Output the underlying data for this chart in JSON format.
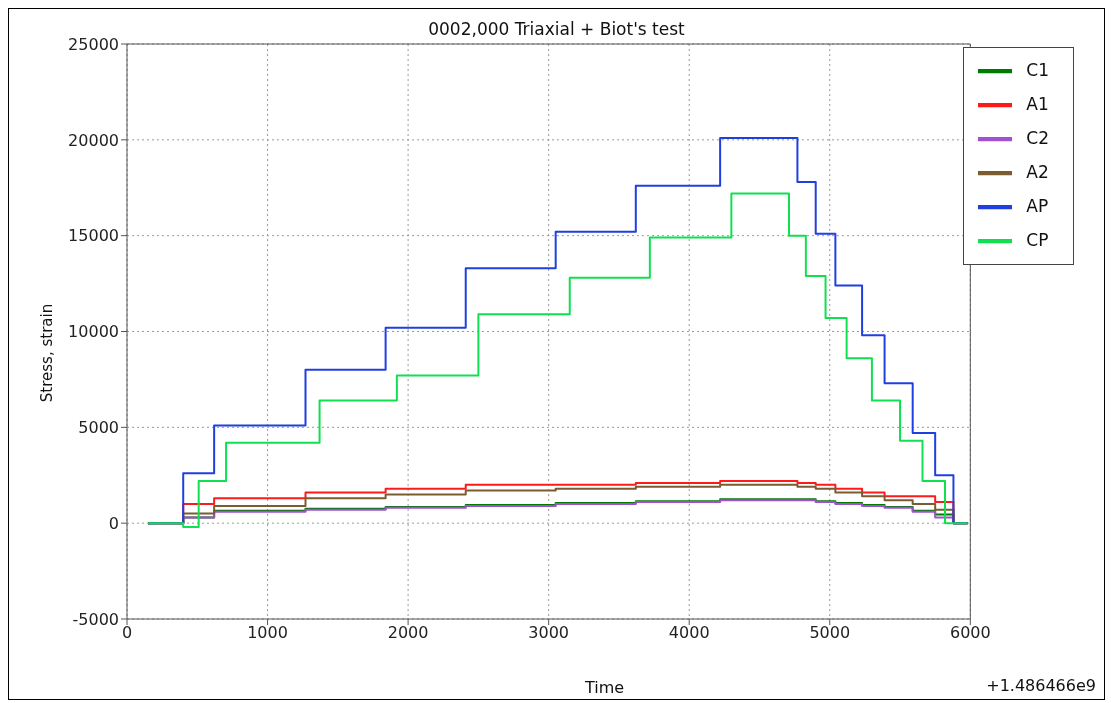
{
  "chart_data": {
    "type": "step",
    "title": "0002,000 Triaxial + Biot's test",
    "xlabel": "Time",
    "ylabel": "Stress, strain",
    "annotations": [
      "+1.486466e9"
    ],
    "xlim": [
      0,
      6000
    ],
    "xticks": [
      0,
      1000,
      2000,
      3000,
      4000,
      5000,
      6000
    ],
    "ylim": [
      -5000,
      25000
    ],
    "yticks": [
      -5000,
      0,
      5000,
      10000,
      15000,
      20000,
      25000
    ],
    "grid": true,
    "legend": "top right",
    "line_style": "solid",
    "marker": "none",
    "series": [
      {
        "name": "C1",
        "color": "#007a00",
        "x": [
          150,
          400,
          620,
          1270,
          1840,
          2410,
          3050,
          3620,
          4220,
          4770,
          4900,
          5040,
          5230,
          5390,
          5590,
          5750,
          5880,
          5980
        ],
        "values": [
          0,
          300,
          650,
          750,
          850,
          950,
          1050,
          1150,
          1250,
          1250,
          1150,
          1050,
          950,
          850,
          650,
          450,
          0,
          0
        ]
      },
      {
        "name": "A1",
        "color": "#ff1a1a",
        "x": [
          150,
          400,
          620,
          1270,
          1840,
          2410,
          3050,
          3620,
          4220,
          4770,
          4900,
          5040,
          5230,
          5390,
          5590,
          5750,
          5880,
          5980
        ],
        "values": [
          0,
          1000,
          1300,
          1600,
          1800,
          2000,
          2000,
          2100,
          2200,
          2100,
          2000,
          1800,
          1600,
          1400,
          1400,
          1100,
          0,
          0
        ]
      },
      {
        "name": "C2",
        "color": "#a050d0",
        "x": [
          150,
          400,
          620,
          1270,
          1840,
          2410,
          3050,
          3620,
          4220,
          4770,
          4900,
          5040,
          5230,
          5390,
          5590,
          5750,
          5880,
          5980
        ],
        "values": [
          0,
          300,
          600,
          700,
          800,
          900,
          1000,
          1100,
          1200,
          1200,
          1100,
          1000,
          900,
          800,
          600,
          300,
          0,
          0
        ]
      },
      {
        "name": "A2",
        "color": "#7a5c30",
        "x": [
          150,
          400,
          620,
          1270,
          1840,
          2410,
          3050,
          3620,
          4220,
          4770,
          4900,
          5040,
          5230,
          5390,
          5590,
          5750,
          5880,
          5980
        ],
        "values": [
          0,
          500,
          900,
          1300,
          1500,
          1700,
          1800,
          1900,
          2000,
          1900,
          1800,
          1600,
          1400,
          1200,
          1000,
          700,
          0,
          0
        ]
      },
      {
        "name": "AP",
        "color": "#1f3fe0",
        "x": [
          150,
          400,
          620,
          1270,
          1840,
          2410,
          3050,
          3620,
          4220,
          4770,
          4900,
          5040,
          5230,
          5390,
          5590,
          5750,
          5880,
          5980
        ],
        "values": [
          0,
          2600,
          5100,
          8000,
          10200,
          13300,
          15200,
          17600,
          20100,
          17800,
          15100,
          12400,
          9800,
          7300,
          4700,
          2500,
          0,
          0
        ]
      },
      {
        "name": "CP",
        "color": "#10e050",
        "x": [
          150,
          400,
          510,
          705,
          1370,
          1920,
          2500,
          3150,
          3720,
          4300,
          4710,
          4830,
          4970,
          5120,
          5300,
          5500,
          5660,
          5820,
          5980
        ],
        "values": [
          0,
          -200,
          2200,
          4200,
          6400,
          7700,
          10900,
          12800,
          14900,
          17200,
          15000,
          12900,
          10700,
          8600,
          6400,
          4300,
          2200,
          0,
          0
        ]
      }
    ]
  }
}
